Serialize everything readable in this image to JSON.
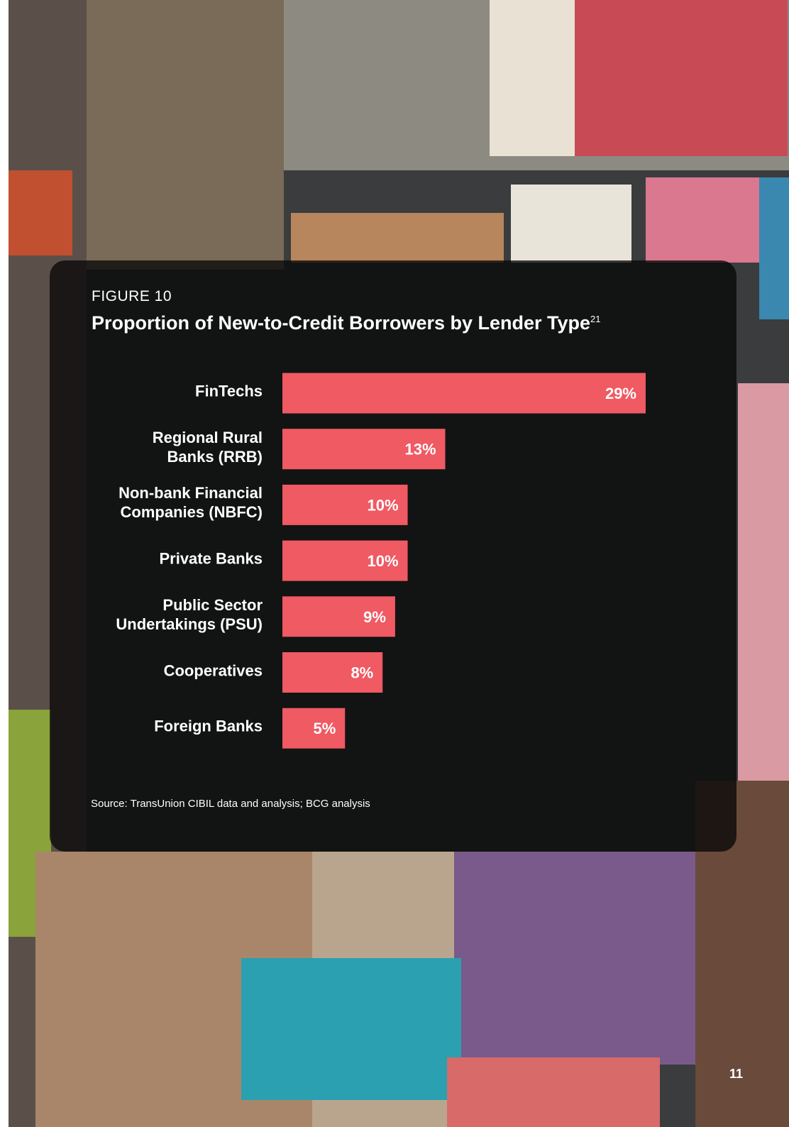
{
  "chart_data": {
    "type": "bar",
    "orientation": "horizontal",
    "figure_label": "FIGURE 10",
    "title": "Proportion of New-to-Credit Borrowers by Lender Type",
    "title_note": "21",
    "categories": [
      "FinTechs",
      "Regional Rural\nBanks (RRB)",
      "Non-bank Financial\nCompanies (NBFC)",
      "Private Banks",
      "Public Sector\nUndertakings (PSU)",
      "Cooperatives",
      "Foreign Banks"
    ],
    "values": [
      29,
      13,
      10,
      10,
      9,
      8,
      5
    ],
    "value_labels": [
      "29%",
      "13%",
      "10%",
      "10%",
      "9%",
      "8%",
      "5%"
    ],
    "color": "#ef5a63",
    "source": "Source: TransUnion CIBIL data and analysis; BCG analysis"
  },
  "page_number": "11"
}
